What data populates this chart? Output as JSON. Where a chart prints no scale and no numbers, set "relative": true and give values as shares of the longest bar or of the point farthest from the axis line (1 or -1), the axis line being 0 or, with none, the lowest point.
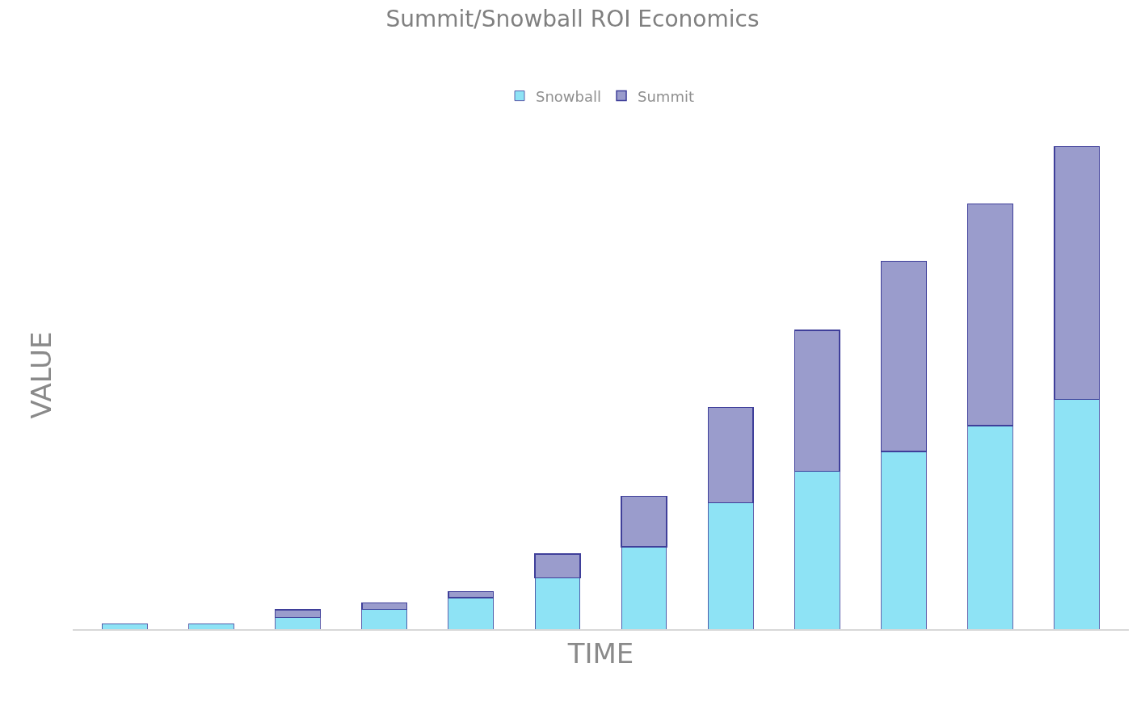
{
  "chart_data": {
    "type": "bar",
    "title": "Summit/Snowball ROI Economics",
    "xlabel": "TIME",
    "ylabel": "VALUE",
    "categories": [
      null,
      null,
      null,
      null,
      null,
      null,
      null,
      null,
      null,
      null,
      null,
      null
    ],
    "stacked": true,
    "relative": true,
    "legend": "top",
    "series": [
      {
        "name": "Snowball",
        "color": "#8ee3f5",
        "values": [
          0.011,
          0.011,
          0.024,
          0.041,
          0.065,
          0.106,
          0.171,
          0.262,
          0.327,
          0.368,
          0.422,
          0.476
        ]
      },
      {
        "name": "Summit",
        "color": "#9a9ccc",
        "values": [
          null,
          null,
          0.016,
          0.013,
          0.013,
          0.05,
          0.104,
          0.197,
          0.292,
          0.394,
          0.459,
          0.524
        ]
      }
    ]
  }
}
